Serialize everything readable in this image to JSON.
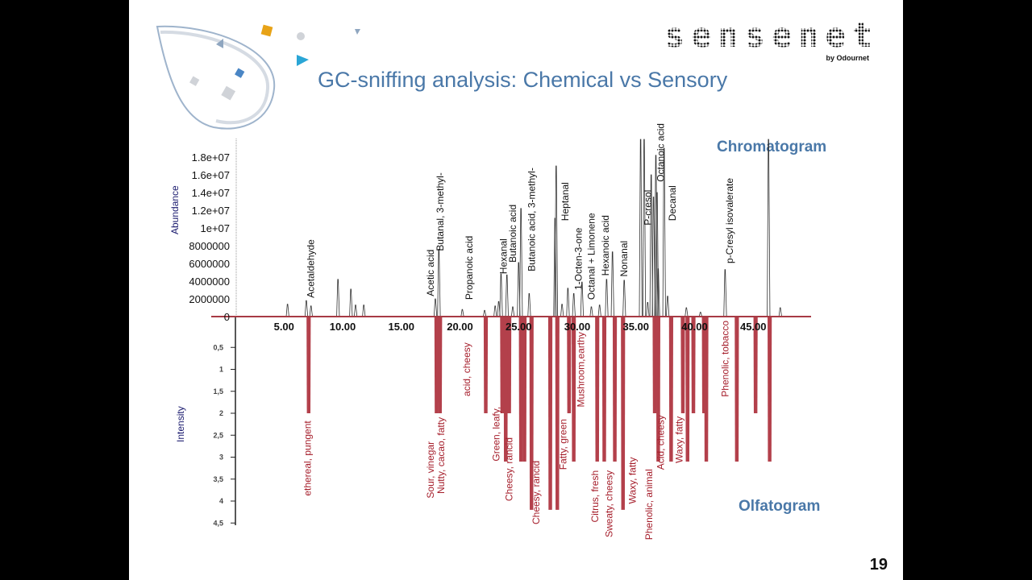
{
  "slide": {
    "title": "GC-sniffing analysis: Chemical vs Sensory",
    "logo_text": "sensenet",
    "logo_subtext": "by Odournet",
    "page_number": "19",
    "colors": {
      "title": "#4a78a8",
      "bars": "#b3404b",
      "odor_text": "#a51d2a",
      "axis_label": "#1a1a6e"
    }
  },
  "chart_data": [
    {
      "type": "line",
      "title": "Chromatogram",
      "ylabel": "Abundance",
      "xlim": [
        0,
        49.5
      ],
      "ylim": [
        0,
        20000000
      ],
      "x_ticks": [
        "5.00",
        "10.00",
        "15.00",
        "20.00",
        "25.00",
        "30.00",
        "35.00",
        "40.00",
        "45.00"
      ],
      "x_tick_values": [
        5,
        10,
        15,
        20,
        25,
        30,
        35,
        40,
        45
      ],
      "y_ticks": [
        "0",
        "2000000",
        "4000000",
        "6000000",
        "8000000",
        "1e+07",
        "1.2e+07",
        "1.4e+07",
        "1.6e+07",
        "1.8e+07"
      ],
      "y_tick_values": [
        0,
        2000000,
        4000000,
        6000000,
        8000000,
        10000000,
        12000000,
        14000000,
        16000000,
        18000000
      ],
      "peaks": [
        [
          5.3,
          1400000.0
        ],
        [
          6.9,
          1800000.0
        ],
        [
          7.3,
          1200000.0
        ],
        [
          9.6,
          4200000.0
        ],
        [
          10.7,
          3100000.0
        ],
        [
          11.1,
          1300000.0
        ],
        [
          11.8,
          1300000.0
        ],
        [
          17.9,
          2000000.0
        ],
        [
          18.2,
          7600000.0
        ],
        [
          20.2,
          800000.0
        ],
        [
          22.1,
          700000.0
        ],
        [
          23.0,
          1200000.0
        ],
        [
          23.3,
          1700000.0
        ],
        [
          23.5,
          4800000.0
        ],
        [
          24.0,
          4700000.0
        ],
        [
          24.5,
          1100000.0
        ],
        [
          25.0,
          6100000.0
        ],
        [
          25.2,
          12200000.0
        ],
        [
          25.9,
          2600000.0
        ],
        [
          28.1,
          11100000.0
        ],
        [
          28.2,
          17000000.0
        ],
        [
          28.7,
          1400000.0
        ],
        [
          29.2,
          3200000.0
        ],
        [
          29.7,
          2600000.0
        ],
        [
          30.4,
          3900000.0
        ],
        [
          31.2,
          1100000.0
        ],
        [
          31.9,
          1300000.0
        ],
        [
          32.5,
          4200000.0
        ],
        [
          33.0,
          7300000.0
        ],
        [
          34.0,
          4100000.0
        ],
        [
          35.4,
          20000000.0
        ],
        [
          35.7,
          20000000.0
        ],
        [
          36.0,
          1600000.0
        ],
        [
          36.3,
          16000000.0
        ],
        [
          36.5,
          13500000.0
        ],
        [
          36.7,
          18200000.0
        ],
        [
          36.8,
          14000000.0
        ],
        [
          36.9,
          5400000.0
        ],
        [
          37.4,
          19000000.0
        ],
        [
          37.7,
          2300000.0
        ],
        [
          39.3,
          1000000.0
        ],
        [
          40.5,
          500000.0
        ],
        [
          42.6,
          5300000.0
        ],
        [
          46.3,
          20000000.0
        ],
        [
          47.3,
          1000000.0
        ]
      ],
      "labels": [
        {
          "text": "Acetaldehyde",
          "rt": 7.3,
          "y": 2100000.0
        },
        {
          "text": "Acetic acid",
          "rt": 17.5,
          "y": 2300000.0
        },
        {
          "text": "Butanal, 3-methyl-",
          "rt": 18.3,
          "y": 7400000.0
        },
        {
          "text": "Propanoic acid",
          "rt": 20.8,
          "y": 1900000.0
        },
        {
          "text": "Hexanal",
          "rt": 23.7,
          "y": 4800000.0
        },
        {
          "text": "Butanoic acid",
          "rt": 24.5,
          "y": 6100000.0
        },
        {
          "text": "Butanoic acid, 3-methyl-",
          "rt": 26.1,
          "y": 5100000.0
        },
        {
          "text": "Heptanal",
          "rt": 28.97,
          "y": 10800000.0
        },
        {
          "text": "1-Octen-3-one",
          "rt": 30.1,
          "y": 3000000.0
        },
        {
          "text": "Octanal + Limonene",
          "rt": 31.2,
          "y": 1900000.0
        },
        {
          "text": "Hexanoic acid",
          "rt": 32.4,
          "y": 4600000.0
        },
        {
          "text": "Nonanal",
          "rt": 34.0,
          "y": 4500000.0
        },
        {
          "text": "P-cresol",
          "rt": 36.0,
          "y": 10300000.0
        },
        {
          "text": "Octanoic acid",
          "rt": 37.1,
          "y": 15200000.0
        },
        {
          "text": "Decanal",
          "rt": 38.1,
          "y": 10800000.0
        },
        {
          "text": "p-Cresyl isovalerate",
          "rt": 43.0,
          "y": 6000000.0
        }
      ]
    },
    {
      "type": "bar",
      "title": "Olfatogram",
      "ylabel": "Intensity",
      "ylim": [
        0,
        4.5
      ],
      "inverted": true,
      "y_ticks": [
        "0,5",
        "1",
        "1,5",
        "2",
        "2,5",
        "3",
        "3,5",
        "4",
        "4,5"
      ],
      "y_tick_values": [
        0.5,
        1,
        1.5,
        2,
        2.5,
        3,
        3.5,
        4,
        4.5
      ],
      "bars": [
        [
          7.1,
          2
        ],
        [
          18.0,
          2
        ],
        [
          18.3,
          2
        ],
        [
          22.2,
          2
        ],
        [
          23.6,
          2
        ],
        [
          23.9,
          3.1
        ],
        [
          24.2,
          2
        ],
        [
          25.2,
          3.1
        ],
        [
          25.5,
          3.1
        ],
        [
          26.1,
          4.2
        ],
        [
          27.7,
          4.2
        ],
        [
          28.3,
          4.2
        ],
        [
          29.3,
          2
        ],
        [
          29.7,
          3.1
        ],
        [
          31.7,
          3.1
        ],
        [
          32.3,
          3.1
        ],
        [
          33.2,
          3.1
        ],
        [
          33.9,
          4.2
        ],
        [
          36.6,
          2
        ],
        [
          36.9,
          3.1
        ],
        [
          38.0,
          3.1
        ],
        [
          39.0,
          2
        ],
        [
          39.4,
          3.1
        ],
        [
          39.9,
          2
        ],
        [
          40.8,
          2
        ],
        [
          41.0,
          3.1
        ],
        [
          43.6,
          3.1
        ],
        [
          45.2,
          2
        ],
        [
          46.4,
          3.1
        ]
      ],
      "labels": [
        {
          "text": "ethereal, pungent",
          "rt": 7.0,
          "y": 2.17
        },
        {
          "text": "Sour, vinegar",
          "rt": 17.5,
          "y": 2.64
        },
        {
          "text": "Nutty, cacao, fatty",
          "rt": 18.4,
          "y": 2.09
        },
        {
          "text": "acid, cheesy",
          "rt": 20.6,
          "y": 0.39
        },
        {
          "text": "Green, leafy,",
          "rt": 23.1,
          "y": 1.85
        },
        {
          "text": "Cheesy, rancid",
          "rt": 24.2,
          "y": 2.55
        },
        {
          "text": "Cheesy, rancid",
          "rt": 26.5,
          "y": 3.08
        },
        {
          "text": "Fatty, green",
          "rt": 28.8,
          "y": 2.13
        },
        {
          "text": "Mushroom,earthy",
          "rt": 30.3,
          "y": 0.15
        },
        {
          "text": "Citrus, fresh",
          "rt": 31.5,
          "y": 3.3
        },
        {
          "text": "Sweaty, cheesy",
          "rt": 32.7,
          "y": 3.3
        },
        {
          "text": "Waxy, fatty",
          "rt": 34.7,
          "y": 3.0
        },
        {
          "text": "Phenolic, animal",
          "rt": 36.1,
          "y": 3.27
        },
        {
          "text": "Acid, cheesy",
          "rt": 37.1,
          "y": 2.04
        },
        {
          "text": "Waxy, fatty",
          "rt": 38.7,
          "y": 2.07
        },
        {
          "text": "Phenolic, tobacco",
          "rt": 42.6,
          "y": -0.11
        }
      ]
    }
  ]
}
